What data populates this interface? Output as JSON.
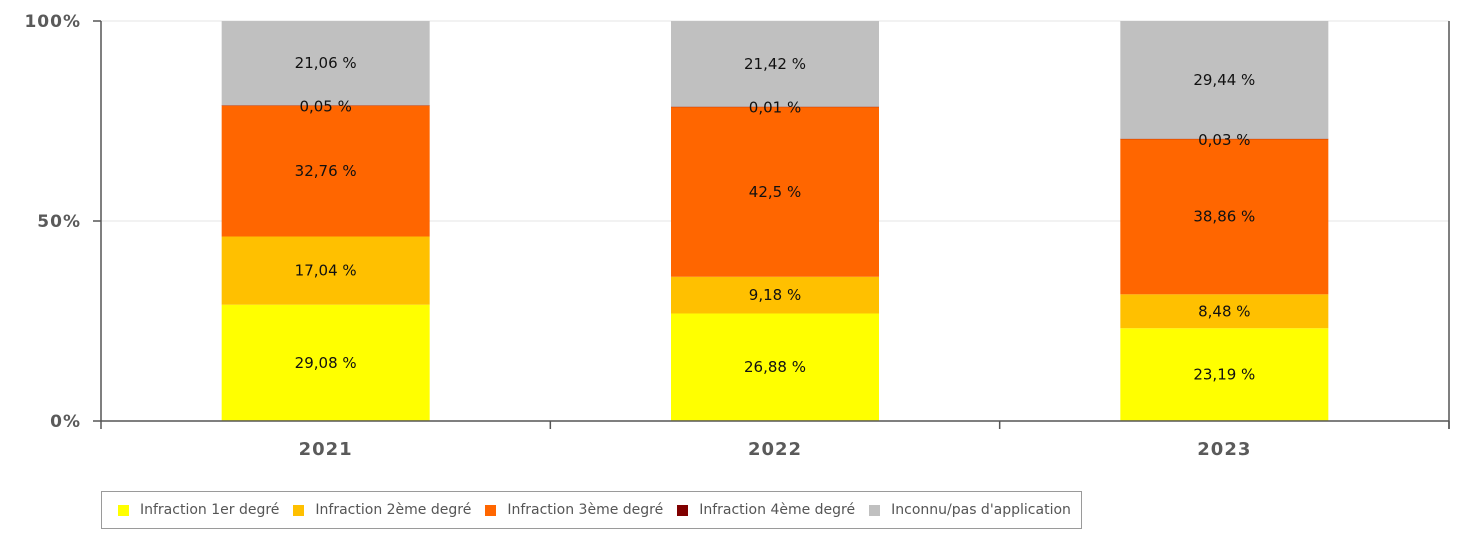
{
  "chart_data": {
    "type": "bar",
    "stacked": true,
    "percent": true,
    "categories": [
      "2021",
      "2022",
      "2023"
    ],
    "series": [
      {
        "name": "Infraction 1er degré",
        "color": "#ffff00",
        "values": [
          29.08,
          26.88,
          23.19
        ],
        "labels": [
          "29,08 %",
          "26,88 %",
          "23,19 %"
        ]
      },
      {
        "name": "Infraction 2ème degré",
        "color": "#ffc000",
        "values": [
          17.04,
          9.18,
          8.48
        ],
        "labels": [
          "17,04 %",
          "9,18 %",
          "8,48 %"
        ]
      },
      {
        "name": "Infraction 3ème degré",
        "color": "#ff6600",
        "values": [
          32.76,
          42.5,
          38.86
        ],
        "labels": [
          "32,76 %",
          "42,5 %",
          "38,86 %"
        ]
      },
      {
        "name": "Infraction 4ème degré",
        "color": "#800000",
        "values": [
          0.05,
          0.01,
          0.03
        ],
        "labels": [
          "0,05 %",
          "0,01 %",
          "0,03 %"
        ]
      },
      {
        "name": "Inconnu/pas d'application",
        "color": "#c0c0c0",
        "values": [
          21.06,
          21.42,
          29.44
        ],
        "labels": [
          "21,06 %",
          "21,42 %",
          "29,44 %"
        ]
      }
    ],
    "yticks": [
      "0%",
      "50%",
      "100%"
    ],
    "ylim": [
      0,
      100
    ],
    "grid": true,
    "legend_position": "bottom-left"
  }
}
